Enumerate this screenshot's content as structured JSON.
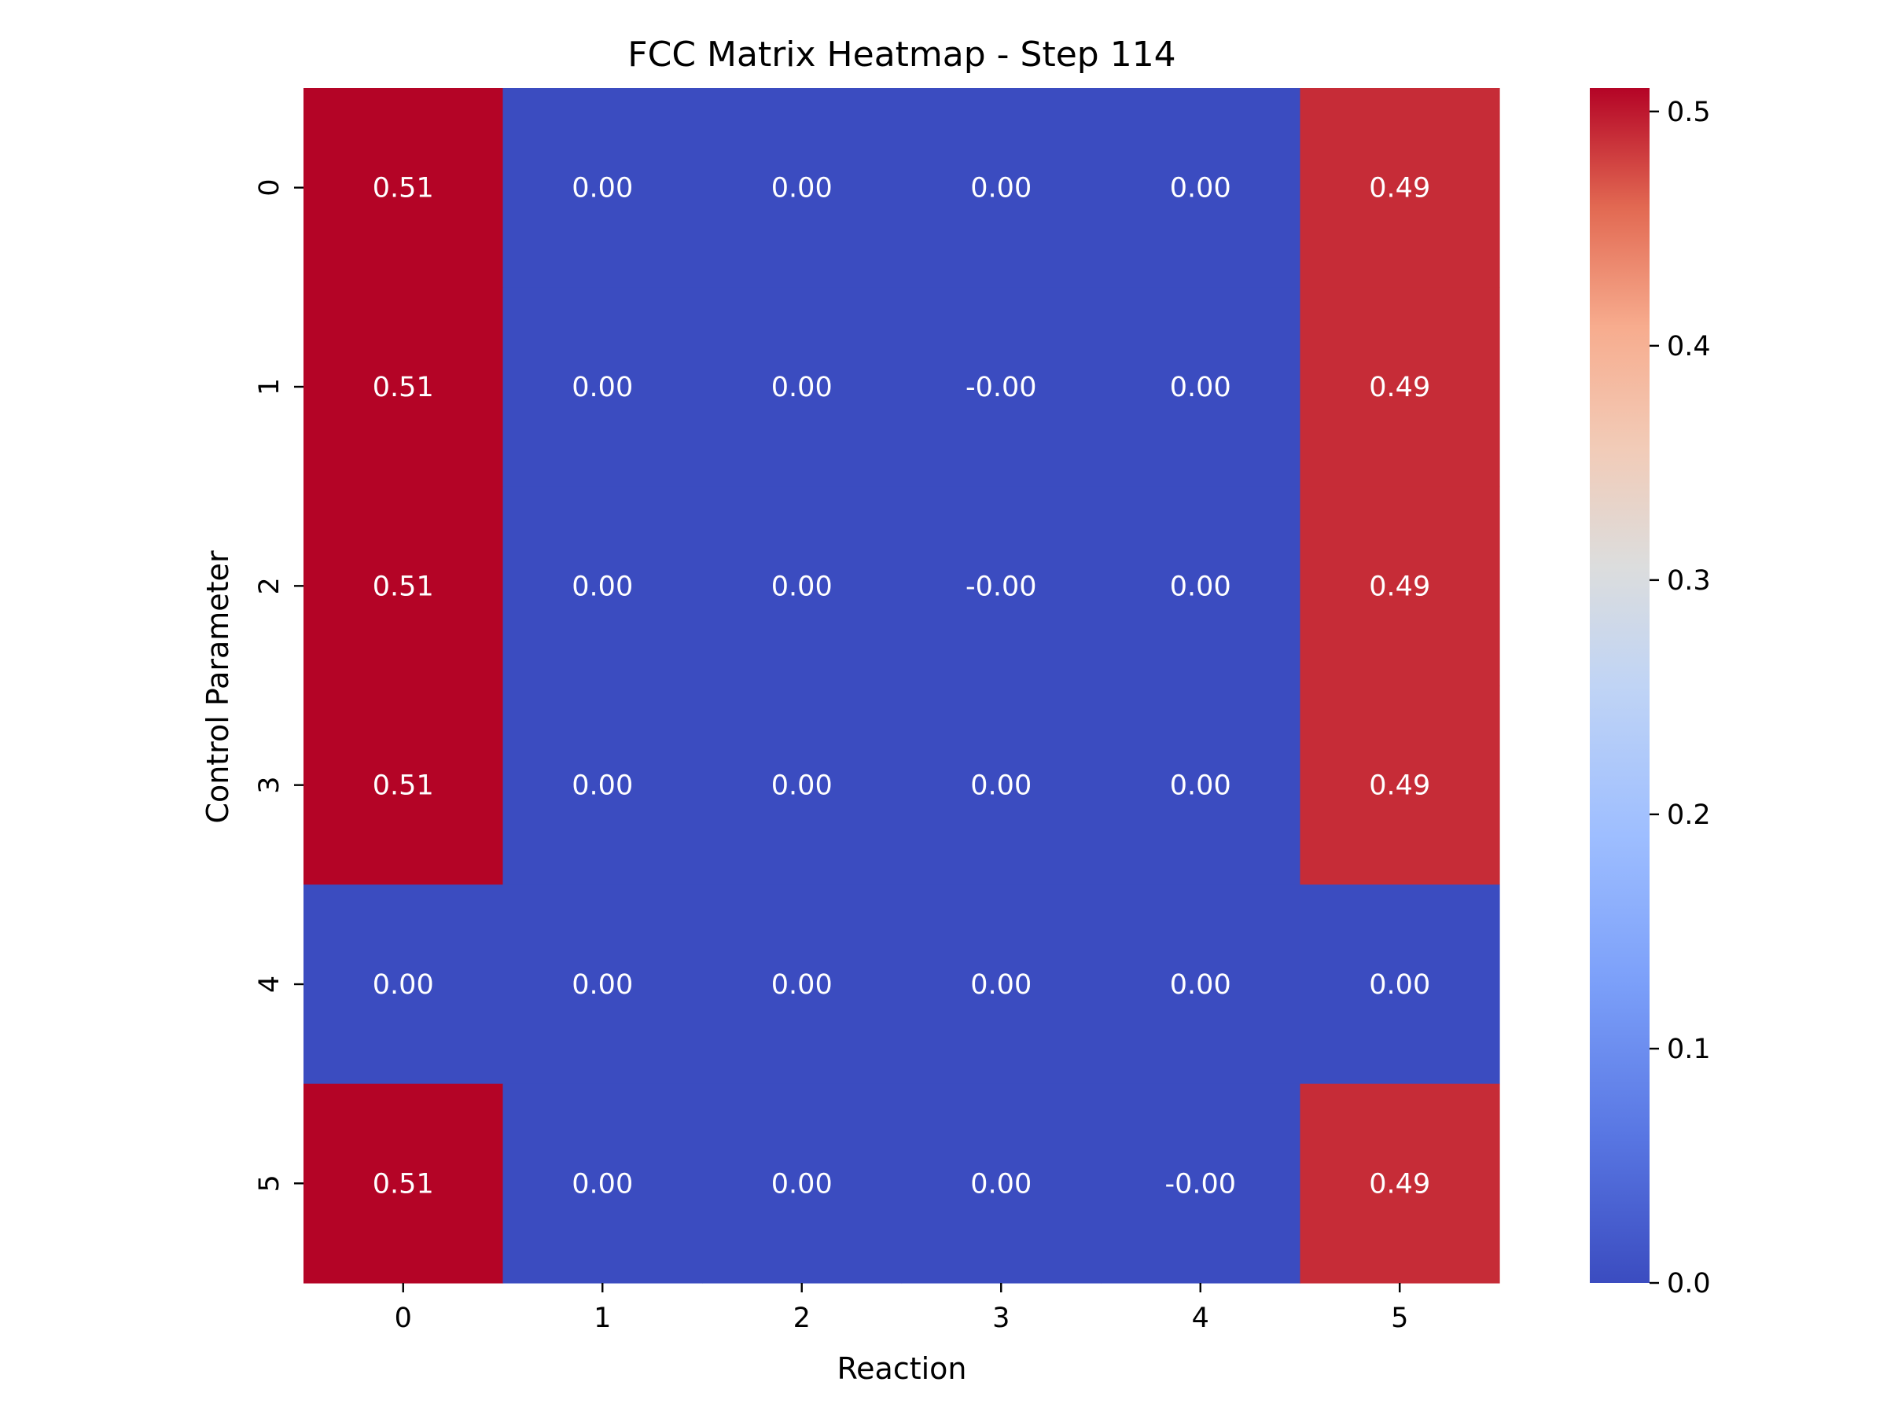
{
  "chart_data": {
    "type": "heatmap",
    "title": "FCC Matrix Heatmap - Step 114",
    "xlabel": "Reaction",
    "ylabel": "Control Parameter",
    "x_categories": [
      "0",
      "1",
      "2",
      "3",
      "4",
      "5"
    ],
    "y_categories": [
      "0",
      "1",
      "2",
      "3",
      "4",
      "5"
    ],
    "values": [
      [
        0.51,
        0.0,
        0.0,
        0.0,
        0.0,
        0.49
      ],
      [
        0.51,
        0.0,
        0.0,
        -0.0,
        0.0,
        0.49
      ],
      [
        0.51,
        0.0,
        0.0,
        -0.0,
        0.0,
        0.49
      ],
      [
        0.51,
        0.0,
        0.0,
        0.0,
        0.0,
        0.49
      ],
      [
        0.0,
        0.0,
        0.0,
        0.0,
        0.0,
        0.0
      ],
      [
        0.51,
        0.0,
        0.0,
        0.0,
        -0.0,
        0.49
      ]
    ],
    "annotations": [
      [
        "0.51",
        "0.00",
        "0.00",
        "0.00",
        "0.00",
        "0.49"
      ],
      [
        "0.51",
        "0.00",
        "0.00",
        "-0.00",
        "0.00",
        "0.49"
      ],
      [
        "0.51",
        "0.00",
        "0.00",
        "-0.00",
        "0.00",
        "0.49"
      ],
      [
        "0.51",
        "0.00",
        "0.00",
        "0.00",
        "0.00",
        "0.49"
      ],
      [
        "0.00",
        "0.00",
        "0.00",
        "0.00",
        "0.00",
        "0.00"
      ],
      [
        "0.51",
        "0.00",
        "0.00",
        "0.00",
        "-0.00",
        "0.49"
      ]
    ],
    "colormap": "coolwarm",
    "vmin": 0.0,
    "vmax": 0.51,
    "colorbar": {
      "ticks": [
        0.0,
        0.1,
        0.2,
        0.3,
        0.4,
        0.5
      ],
      "tick_labels": [
        "0.0",
        "0.1",
        "0.2",
        "0.3",
        "0.4",
        "0.5"
      ]
    },
    "grid": false,
    "legend": "colorbar-right"
  }
}
